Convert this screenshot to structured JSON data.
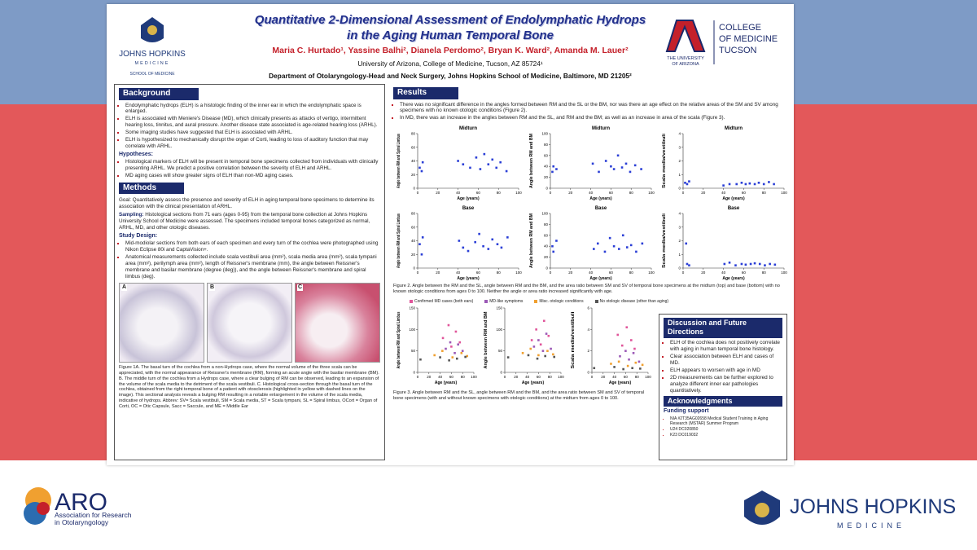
{
  "header": {
    "title_line1": "Quantitative 2-Dimensional Assessment of Endolymphatic Hydrops",
    "title_line2": "in the Aging Human Temporal Bone",
    "authors": "Maria C. Hurtado¹, Yassine Balhi², Dianela Perdomo², Bryan K. Ward², Amanda M. Lauer²",
    "affiliation1": "University of Arizona, College of Medicine, Tucson, AZ 85724¹",
    "affiliation2": "Department of Otolaryngology-Head and Neck Surgery, Johns Hopkins School of Medicine, Baltimore, MD 21205²",
    "left_logo": {
      "name": "JOHNS HOPKINS",
      "sub": "MEDICINE",
      "school": "SCHOOL OF MEDICINE"
    },
    "right_logo": {
      "name1": "THE UNIVERSITY",
      "name2": "OF ARIZONA",
      "dept1": "COLLEGE",
      "dept2": "OF MEDICINE",
      "dept3": "TUCSON"
    }
  },
  "background": {
    "heading": "Background",
    "bullets": [
      "Endolymphatic hydrops (ELH) is a histologic finding of the inner ear in which the endolymphatic space is enlarged.",
      "ELH is associated with Meniere's Disease (MD), which clinically presents as attacks of vertigo, intermittent hearing loss, tinnitus, and aural pressure. Another disease state associated is age-related hearing loss (ARHL).",
      "Some imaging studies have suggested that ELH is associated with ARHL.",
      "ELH is hypothesized to mechanically disrupt the organ of Corti, leading to loss of auditory function that may correlate with ARHL."
    ],
    "hypotheses_heading": "Hypotheses:",
    "hypotheses": [
      "Histological markers of ELH will be present in temporal bone specimens collected from individuals with clinically presenting ARHL. We predict a positive correlation between the severity of ELH and ARHL.",
      "MD aging cases will show greater signs of ELH than non-MD aging cases."
    ]
  },
  "methods": {
    "heading": "Methods",
    "goal": "Goal: Quantitatively assess the presence and severity of ELH in aging temporal bone specimens to determine its association with the clinical presentation of ARHL.",
    "sampling_label": "Sampling:",
    "sampling": "Histological sections from 71 ears (ages 0-95) from the temporal bone collection at Johns Hopkins University School of Medicine were assessed. The specimens included temporal bones categorized as normal, ARHL, MD, and other otologic diseases.",
    "design_heading": "Study Design:",
    "design": [
      "Mid-modiolar sections from both ears of each specimen and every turn of the cochlea were photographed using Nikon Eclipse 80i and CaptaVision+.",
      "Anatomical measurements collected include scala vestibuli area (mm²), scala media area (mm²), scala tympani area (mm²), perilymph area (mm²), length of Reissner's membrane (mm), the angle between Reissner's membrane and basilar membrane (degree (deg)), and the angle between Reissner's membrane and spiral limbus (deg)."
    ],
    "figure1_panels": [
      "A",
      "B",
      "C"
    ],
    "figure1_caption": "Figure 1A. The basal turn of the cochlea from a non-Hydrops case, where the normal volume of the three scala can be appreciated, with the normal appearance of Reissner's membrane (RM), forming an acute angle with the basilar membrane (BM). B. The middle turn of the cochlea from a Hydrops case, where a clear bulging of RM can be observed, leading to an expansion of the volume of the scala media to the detriment of the scala vestibuli. C. Histological cross-section through the basal turn of the cochlea, obtained from the right temporal bone of a patient with otosclerosis (highlighted in yellow with dashed lines on the image). This sectional analysis reveals a bulging RM resulting in a notable enlargement in the volume of the scala media, indicative of hydrops. Abbrev: SV= Scala vestibuli, SM = Scala media, ST = Scala tympani, SL = Spiral limbus, OCort = Organ of Corti, OC = Otic Capsule, Sacc = Saccule, and ME = Middle Ear"
  },
  "results": {
    "heading": "Results",
    "bullets": [
      "There was no significant difference in the angles formed between RM and the SL or the BM, nor was there an age effect on the relative areas of the SM and SV among specimens with no known otologic conditions (Figure 2).",
      "In MD, there was an increase in the angles between RM and the SL, and RM and the BM; as well as an increase in area of the scala (Figure 3)."
    ],
    "figure2": {
      "color": "#2b3fd6",
      "panels": [
        {
          "title": "Midturn",
          "ylabel": "Angle between RM and Spiral Limbus",
          "xlabel": "Age (years)",
          "xlim": [
            0,
            100
          ],
          "xticks": [
            0,
            20,
            40,
            60,
            80,
            100
          ],
          "ylim": [
            0,
            80
          ],
          "yticks": [
            0,
            20,
            40,
            60,
            80
          ],
          "x": [
            2,
            4,
            5,
            40,
            45,
            52,
            58,
            62,
            66,
            70,
            74,
            78,
            82,
            88
          ],
          "y": [
            30,
            25,
            38,
            40,
            35,
            30,
            45,
            28,
            50,
            35,
            42,
            30,
            38,
            25
          ]
        },
        {
          "title": "Midturn",
          "ylabel": "Angle between RM and BM",
          "xlabel": "Age (years)",
          "xlim": [
            0,
            100
          ],
          "xticks": [
            0,
            20,
            40,
            60,
            80,
            100
          ],
          "ylim": [
            0,
            100
          ],
          "yticks": [
            0,
            20,
            40,
            60,
            80,
            100
          ],
          "x": [
            2,
            3,
            6,
            42,
            48,
            55,
            60,
            63,
            67,
            71,
            75,
            79,
            84,
            90
          ],
          "y": [
            30,
            40,
            35,
            45,
            30,
            50,
            40,
            35,
            60,
            38,
            45,
            30,
            42,
            35
          ]
        },
        {
          "title": "Midturn",
          "ylabel": "Scala media/vestibuli",
          "xlabel": "Age (years)",
          "xlim": [
            0,
            100
          ],
          "xticks": [
            0,
            20,
            40,
            60,
            80,
            100
          ],
          "ylim": [
            0,
            4
          ],
          "yticks": [
            0,
            1,
            2,
            3,
            4
          ],
          "x": [
            2,
            4,
            6,
            40,
            46,
            53,
            58,
            62,
            66,
            71,
            75,
            80,
            85,
            90
          ],
          "y": [
            0.4,
            0.3,
            0.5,
            0.2,
            0.3,
            0.3,
            0.4,
            0.3,
            0.35,
            0.3,
            0.4,
            0.3,
            0.45,
            0.3
          ]
        },
        {
          "title": "Base",
          "ylabel": "Angle between RM and Spiral Limbus",
          "xlabel": "Age (years)",
          "xlim": [
            0,
            100
          ],
          "xticks": [
            0,
            20,
            40,
            60,
            80,
            100
          ],
          "ylim": [
            0,
            80
          ],
          "yticks": [
            0,
            20,
            40,
            60,
            80
          ],
          "x": [
            2,
            4,
            5,
            41,
            45,
            50,
            57,
            61,
            65,
            70,
            74,
            79,
            83,
            89
          ],
          "y": [
            35,
            20,
            45,
            40,
            30,
            25,
            38,
            50,
            32,
            28,
            42,
            35,
            30,
            45
          ]
        },
        {
          "title": "Base",
          "ylabel": "Angle between RM and BM",
          "xlabel": "Age (years)",
          "xlim": [
            0,
            100
          ],
          "xticks": [
            0,
            20,
            40,
            60,
            80,
            100
          ],
          "ylim": [
            0,
            100
          ],
          "yticks": [
            0,
            20,
            40,
            60,
            80,
            100
          ],
          "x": [
            2,
            3,
            6,
            43,
            47,
            54,
            59,
            63,
            68,
            72,
            76,
            80,
            85,
            91
          ],
          "y": [
            40,
            30,
            50,
            35,
            45,
            30,
            55,
            40,
            35,
            60,
            38,
            42,
            30,
            45
          ]
        },
        {
          "title": "Base",
          "ylabel": "Scala media/vestibuli",
          "xlabel": "Age (years)",
          "xlim": [
            0,
            100
          ],
          "xticks": [
            0,
            20,
            40,
            60,
            80,
            100
          ],
          "ylim": [
            0,
            4
          ],
          "yticks": [
            0,
            1,
            2,
            3,
            4
          ],
          "x": [
            3,
            4,
            6,
            41,
            46,
            52,
            58,
            62,
            67,
            71,
            76,
            81,
            86,
            91
          ],
          "y": [
            1.8,
            0.3,
            0.2,
            0.3,
            0.4,
            0.2,
            0.3,
            0.25,
            0.3,
            0.35,
            0.3,
            0.2,
            0.3,
            0.25
          ]
        }
      ],
      "caption": "Figure 2. Angle between the RM and the SL, angle between RM and the BM, and the area ratio between SM and SV of temporal bone specimens at the midturn (top) and base (bottom) with no known otologic conditions from ages 0 to 100. Neither the angle or area ratio increased significantly with age."
    },
    "figure3": {
      "series": [
        {
          "name": "Confirmed MD cases (both ears)",
          "color": "#e0559a"
        },
        {
          "name": "MD-like symptoms",
          "color": "#9b59b6"
        },
        {
          "name": "Misc. otologic conditions",
          "color": "#f0a030"
        },
        {
          "name": "No otologic disease (other than aging)",
          "color": "#555555"
        }
      ],
      "panels": [
        {
          "ylabel": "Angle between RM and Spiral Limbus",
          "xlabel": "Age (years)",
          "xlim": [
            0,
            100
          ],
          "xticks": [
            0,
            20,
            40,
            60,
            80,
            100
          ],
          "ylim": [
            0,
            150
          ],
          "yticks": [
            0,
            50,
            100,
            150
          ],
          "series": [
            {
              "x": [
                45,
                55,
                60,
                68,
                75
              ],
              "y": [
                80,
                110,
                60,
                95,
                70
              ]
            },
            {
              "x": [
                50,
                58,
                66,
                72,
                80
              ],
              "y": [
                55,
                70,
                45,
                65,
                50
              ]
            },
            {
              "x": [
                30,
                44,
                62,
                78,
                88
              ],
              "y": [
                40,
                50,
                35,
                45,
                38
              ]
            },
            {
              "x": [
                5,
                40,
                56,
                70,
                85
              ],
              "y": [
                30,
                35,
                28,
                32,
                36
              ]
            }
          ]
        },
        {
          "ylabel": "Angle between RM and BM",
          "xlabel": "Age (years)",
          "xlim": [
            0,
            100
          ],
          "xticks": [
            0,
            20,
            40,
            60,
            80,
            100
          ],
          "ylim": [
            0,
            150
          ],
          "yticks": [
            0,
            50,
            100,
            150
          ],
          "series": [
            {
              "x": [
                48,
                56,
                64,
                70,
                78
              ],
              "y": [
                75,
                100,
                65,
                120,
                85
              ]
            },
            {
              "x": [
                52,
                60,
                68,
                74,
                82
              ],
              "y": [
                60,
                75,
                50,
                90,
                55
              ]
            },
            {
              "x": [
                32,
                46,
                60,
                76,
                86
              ],
              "y": [
                45,
                55,
                40,
                50,
                42
              ]
            },
            {
              "x": [
                6,
                42,
                58,
                72,
                88
              ],
              "y": [
                35,
                40,
                32,
                38,
                36
              ]
            }
          ]
        },
        {
          "ylabel": "Scala media/vestibuli",
          "xlabel": "Age (years)",
          "xlim": [
            0,
            100
          ],
          "xticks": [
            0,
            20,
            40,
            60,
            80,
            100
          ],
          "ylim": [
            0,
            6
          ],
          "yticks": [
            0,
            2,
            4,
            6
          ],
          "series": [
            {
              "x": [
                46,
                54,
                62,
                70,
                76
              ],
              "y": [
                3.5,
                2.5,
                4.2,
                3.0,
                2.2
              ]
            },
            {
              "x": [
                50,
                60,
                66,
                74,
                84
              ],
              "y": [
                1.5,
                2.0,
                1.2,
                1.8,
                1.0
              ]
            },
            {
              "x": [
                34,
                48,
                64,
                78,
                90
              ],
              "y": [
                0.8,
                1.0,
                0.6,
                0.9,
                0.7
              ]
            },
            {
              "x": [
                4,
                40,
                56,
                72,
                86
              ],
              "y": [
                0.4,
                0.5,
                0.3,
                0.4,
                0.35
              ]
            }
          ]
        }
      ],
      "caption": "Figure 3. Angle between RM and the SL, angle between RM and the BM, and the area ratio between SM and SV of temporal bone specimens (with and without known specimens with otologic conditions) at the midturn from ages 0 to 100."
    }
  },
  "discussion": {
    "heading": "Discussion and Future Directions",
    "bullets": [
      "ELH of the cochlea does not positively correlate with aging in human temporal bone histology.",
      "Clear association between ELH and cases of MD.",
      "ELH appears to worsen with age in MD",
      "2D measurements can be further explored to analyze different inner ear pathologies quantitatively."
    ]
  },
  "acknowledgments": {
    "heading": "Acknowledgments",
    "subheading": "Funding support",
    "items": [
      "NIA #2T35AG02658 Medical Student Training in Aging Research (MSTAR) Summer Program",
      "U24 DC020850",
      "K23 DC019032"
    ]
  },
  "footer": {
    "aro_abbr": "ARO",
    "aro_name": "Association for Research in Otolaryngology",
    "jh_name": "JOHNS HOPKINS",
    "jh_sub": "MEDICINE"
  }
}
